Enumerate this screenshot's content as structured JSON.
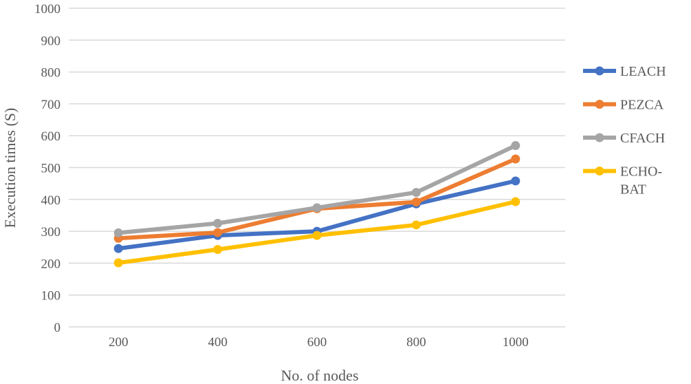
{
  "chart_data": {
    "type": "line",
    "title": "",
    "xlabel": "No. of nodes",
    "ylabel": "Execution times (S)",
    "categories": [
      "200",
      "400",
      "600",
      "800",
      "1000"
    ],
    "ylim": [
      0,
      1000
    ],
    "yticks": [
      "0",
      "100",
      "200",
      "300",
      "400",
      "500",
      "600",
      "700",
      "800",
      "900",
      "1000"
    ],
    "grid": true,
    "legend_position": "right",
    "series": [
      {
        "name": "LEACH",
        "color": "#4472C4",
        "values": [
          246,
          287,
          300,
          386,
          458
        ]
      },
      {
        "name": "PEZCA",
        "color": "#ED7D31",
        "values": [
          278,
          296,
          371,
          392,
          527
        ]
      },
      {
        "name": "CFACH",
        "color": "#A5A5A5",
        "values": [
          295,
          325,
          374,
          422,
          569
        ]
      },
      {
        "name": "ECHO-BAT",
        "legend_lines": [
          "ECHO-",
          "BAT"
        ],
        "color": "#FFC000",
        "values": [
          201,
          243,
          287,
          320,
          393
        ]
      }
    ]
  }
}
